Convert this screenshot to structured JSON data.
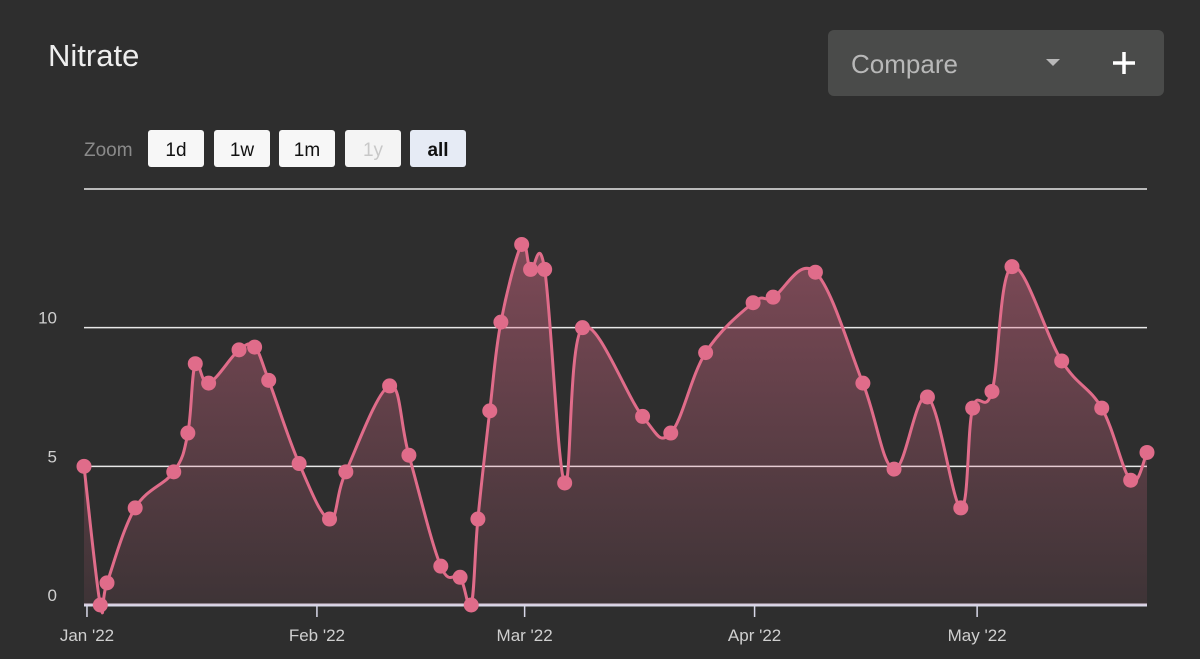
{
  "compare": {
    "label": "Compare"
  },
  "zoom": {
    "label": "Zoom",
    "buttons": [
      {
        "label": "1d"
      },
      {
        "label": "1w"
      },
      {
        "label": "1m"
      },
      {
        "label": "1y",
        "disabled": true
      },
      {
        "label": "all",
        "selected": true
      }
    ]
  },
  "chart_data": {
    "type": "line",
    "title": "Nitrate",
    "x": [
      0.6,
      2.8,
      3.7,
      7.5,
      12.7,
      14.6,
      15.6,
      17.4,
      21.5,
      23.6,
      25.5,
      29.6,
      33.7,
      35.9,
      41.8,
      44.4,
      48.7,
      51.3,
      52.8,
      53.7,
      55.3,
      56.8,
      59.6,
      60.8,
      62.7,
      65.4,
      67.8,
      75.9,
      79.7,
      84.4,
      90.8,
      93.5,
      99.2,
      105.6,
      109.8,
      114.3,
      118.8,
      120.4,
      123.0,
      125.7,
      132.4,
      137.8,
      141.7,
      143.9
    ],
    "series": [
      {
        "name": "Nitrate",
        "color": "#e06c8a",
        "values": [
          5.0,
          0,
          0.8,
          3.5,
          4.8,
          6.2,
          8.7,
          8.0,
          9.2,
          9.3,
          8.1,
          5.1,
          3.1,
          4.8,
          7.9,
          5.4,
          1.4,
          1.0,
          0,
          3.1,
          7.0,
          10.2,
          13.0,
          12.1,
          12.1,
          4.4,
          10.0,
          6.8,
          6.2,
          9.1,
          10.9,
          11.1,
          12.0,
          8.0,
          4.9,
          7.5,
          3.5,
          7.1,
          7.7,
          12.2,
          8.8,
          7.1,
          4.5,
          5.5
        ]
      }
    ],
    "xlim": [
      0.6,
      143.9
    ],
    "xticks": [
      {
        "value": 1,
        "label": "Jan '22"
      },
      {
        "value": 32,
        "label": "Feb '22"
      },
      {
        "value": 60,
        "label": "Mar '22"
      },
      {
        "value": 91,
        "label": "Apr '22"
      },
      {
        "value": 121,
        "label": "May '22"
      }
    ],
    "ylim": [
      0,
      15
    ],
    "yticks": [
      0,
      5,
      10
    ],
    "grid": true
  }
}
